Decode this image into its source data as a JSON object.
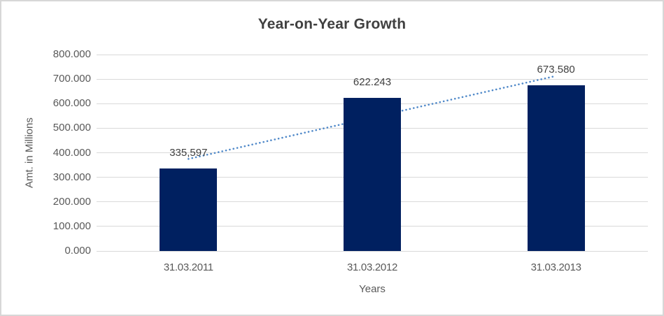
{
  "chart_data": {
    "type": "bar",
    "title": "Year-on-Year Growth",
    "xlabel": "Years",
    "ylabel": "Amt. in Millions",
    "categories": [
      "31.03.2011",
      "31.03.2012",
      "31.03.2013"
    ],
    "values": [
      335.597,
      622.243,
      673.58
    ],
    "data_labels": [
      "335,597",
      "622.243",
      "673.580"
    ],
    "ylim": [
      0,
      800
    ],
    "ytick_step": 100,
    "ytick_labels": [
      "0.000",
      "100.000",
      "200.000",
      "300.000",
      "400.000",
      "500.000",
      "600.000",
      "700.000",
      "800.000"
    ],
    "grid": true,
    "legend": false,
    "trendline": {
      "type": "linear",
      "style": "dotted",
      "start_value": 374.8,
      "end_value": 712.8
    },
    "colors": {
      "bar": "#002060",
      "trendline": "#5089c9",
      "gridline": "#d9d9d9",
      "title_text": "#404040",
      "tick_text": "#595959",
      "frame_border": "#d7d7d7"
    }
  }
}
